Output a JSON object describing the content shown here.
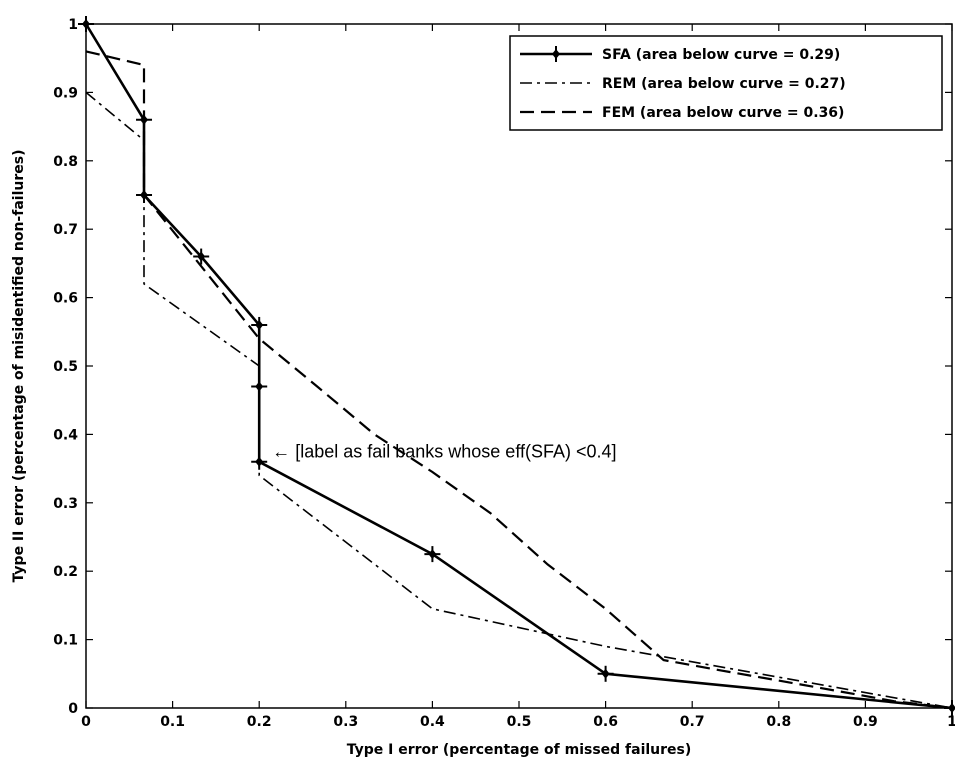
{
  "chart_data": {
    "type": "line",
    "xlabel": "Type I error (percentage of missed failures)",
    "ylabel": "Type II error (percentage of misidentified non-failures)",
    "xlim": [
      0,
      1
    ],
    "ylim": [
      0,
      1
    ],
    "xticks": [
      "0",
      "0.1",
      "0.2",
      "0.3",
      "0.4",
      "0.5",
      "0.6",
      "0.7",
      "0.8",
      "0.9",
      "1"
    ],
    "yticks": [
      "0",
      "0.1",
      "0.2",
      "0.3",
      "0.4",
      "0.5",
      "0.6",
      "0.7",
      "0.8",
      "0.9",
      "1"
    ],
    "grid": false,
    "legend_position": "top-right",
    "series": [
      {
        "name": "SFA (area below curve = 0.29)",
        "style": "solid",
        "markers": true,
        "x": [
          0,
          0.067,
          0.067,
          0.133,
          0.2,
          0.2,
          0.2,
          0.4,
          0.6,
          1.0
        ],
        "y": [
          1.0,
          0.86,
          0.75,
          0.66,
          0.56,
          0.47,
          0.36,
          0.225,
          0.05,
          0
        ]
      },
      {
        "name": "REM (area below curve = 0.27)",
        "style": "dash-dot",
        "markers": false,
        "x": [
          0,
          0.067,
          0.067,
          0.2,
          0.2,
          0.4,
          0.6,
          1.0
        ],
        "y": [
          0.9,
          0.83,
          0.62,
          0.5,
          0.34,
          0.145,
          0.09,
          0
        ]
      },
      {
        "name": "FEM (area below curve = 0.36)",
        "style": "dashed",
        "markers": false,
        "x": [
          0,
          0.067,
          0.067,
          0.2,
          0.267,
          0.333,
          0.4,
          0.467,
          0.533,
          0.6,
          0.667,
          0.733,
          0.8,
          0.867,
          0.933,
          1.0
        ],
        "y": [
          0.96,
          0.94,
          0.75,
          0.54,
          0.47,
          0.4,
          0.345,
          0.285,
          0.21,
          0.145,
          0.07,
          0.055,
          0.04,
          0.025,
          0.01,
          0
        ]
      }
    ],
    "annotation": {
      "text": "← [label as fail banks whose eff(SFA) <0.4]",
      "x": 0.215,
      "y": 0.375
    }
  }
}
